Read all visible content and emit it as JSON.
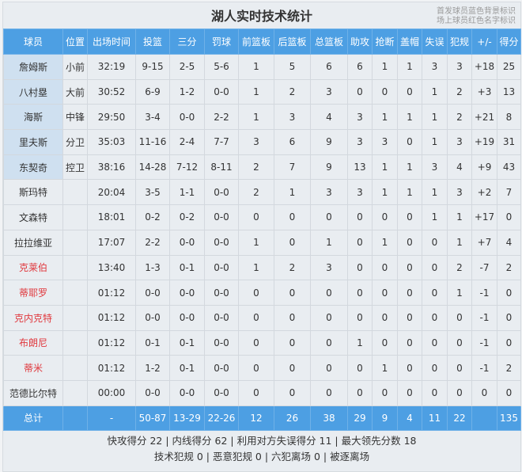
{
  "title": "湖人实时技术统计",
  "legend_note": [
    "首发球员蓝色背景标识",
    "场上球员红色名字标识"
  ],
  "colors": {
    "header_bg": "#4d9fe3",
    "starter_bg": "#cfe0f0",
    "on_court_name": "#e0393e"
  },
  "columns": [
    "球员",
    "位置",
    "出场时间",
    "投篮",
    "三分",
    "罚球",
    "前篮板",
    "后篮板",
    "总篮板",
    "助攻",
    "抢断",
    "盖帽",
    "失误",
    "犯规",
    "+/-",
    "得分"
  ],
  "rows": [
    {
      "starter": true,
      "on_court": false,
      "cells": [
        "詹姆斯",
        "小前",
        "32:19",
        "9-15",
        "2-5",
        "5-6",
        "1",
        "5",
        "6",
        "6",
        "1",
        "1",
        "3",
        "3",
        "+18",
        "25"
      ]
    },
    {
      "starter": true,
      "on_court": false,
      "cells": [
        "八村塁",
        "大前",
        "30:52",
        "6-9",
        "1-2",
        "0-0",
        "1",
        "2",
        "3",
        "0",
        "0",
        "0",
        "1",
        "2",
        "+3",
        "13"
      ]
    },
    {
      "starter": true,
      "on_court": false,
      "cells": [
        "海斯",
        "中锋",
        "29:50",
        "3-4",
        "0-0",
        "2-2",
        "1",
        "3",
        "4",
        "3",
        "1",
        "1",
        "1",
        "2",
        "+21",
        "8"
      ]
    },
    {
      "starter": true,
      "on_court": false,
      "cells": [
        "里夫斯",
        "分卫",
        "35:03",
        "11-16",
        "2-4",
        "7-7",
        "3",
        "6",
        "9",
        "3",
        "3",
        "0",
        "1",
        "3",
        "+19",
        "31"
      ]
    },
    {
      "starter": true,
      "on_court": false,
      "cells": [
        "东契奇",
        "控卫",
        "38:16",
        "14-28",
        "7-12",
        "8-11",
        "2",
        "7",
        "9",
        "13",
        "1",
        "1",
        "3",
        "4",
        "+9",
        "43"
      ]
    },
    {
      "starter": false,
      "on_court": false,
      "cells": [
        "斯玛特",
        "",
        "20:04",
        "3-5",
        "1-1",
        "0-0",
        "2",
        "1",
        "3",
        "3",
        "1",
        "1",
        "1",
        "3",
        "+2",
        "7"
      ]
    },
    {
      "starter": false,
      "on_court": false,
      "cells": [
        "文森特",
        "",
        "18:01",
        "0-2",
        "0-2",
        "0-0",
        "0",
        "0",
        "0",
        "0",
        "0",
        "0",
        "1",
        "1",
        "+17",
        "0"
      ]
    },
    {
      "starter": false,
      "on_court": false,
      "cells": [
        "拉拉维亚",
        "",
        "17:07",
        "2-2",
        "0-0",
        "0-0",
        "1",
        "0",
        "1",
        "0",
        "1",
        "0",
        "0",
        "1",
        "+7",
        "4"
      ]
    },
    {
      "starter": false,
      "on_court": true,
      "cells": [
        "克莱伯",
        "",
        "13:40",
        "1-3",
        "0-1",
        "0-0",
        "1",
        "2",
        "3",
        "0",
        "0",
        "0",
        "0",
        "2",
        "-7",
        "2"
      ]
    },
    {
      "starter": false,
      "on_court": true,
      "cells": [
        "蒂耶罗",
        "",
        "01:12",
        "0-0",
        "0-0",
        "0-0",
        "0",
        "0",
        "0",
        "0",
        "0",
        "0",
        "0",
        "1",
        "-1",
        "0"
      ]
    },
    {
      "starter": false,
      "on_court": true,
      "cells": [
        "克内克特",
        "",
        "01:12",
        "0-0",
        "0-0",
        "0-0",
        "0",
        "0",
        "0",
        "0",
        "0",
        "0",
        "0",
        "0",
        "-1",
        "0"
      ]
    },
    {
      "starter": false,
      "on_court": true,
      "cells": [
        "布朗尼",
        "",
        "01:12",
        "0-1",
        "0-1",
        "0-0",
        "0",
        "0",
        "0",
        "1",
        "0",
        "0",
        "0",
        "0",
        "-1",
        "0"
      ]
    },
    {
      "starter": false,
      "on_court": true,
      "cells": [
        "蒂米",
        "",
        "01:12",
        "1-2",
        "0-1",
        "0-0",
        "0",
        "0",
        "0",
        "0",
        "1",
        "0",
        "0",
        "0",
        "-1",
        "2"
      ]
    },
    {
      "starter": false,
      "on_court": false,
      "cells": [
        "范德比尔特",
        "",
        "00:00",
        "0-0",
        "0-0",
        "0-0",
        "0",
        "0",
        "0",
        "0",
        "0",
        "0",
        "0",
        "0",
        "0",
        "0"
      ]
    }
  ],
  "total": [
    "总计",
    "",
    "-",
    "50-87",
    "13-29",
    "22-26",
    "12",
    "26",
    "38",
    "29",
    "9",
    "4",
    "11",
    "22",
    "",
    "135"
  ],
  "footer": [
    "快攻得分 22 | 内线得分 62 | 利用对方失误得分 11 | 最大领先分数 18",
    "技术犯规 0 | 恶意犯规 0 | 六犯离场 0 | 被逐离场"
  ]
}
